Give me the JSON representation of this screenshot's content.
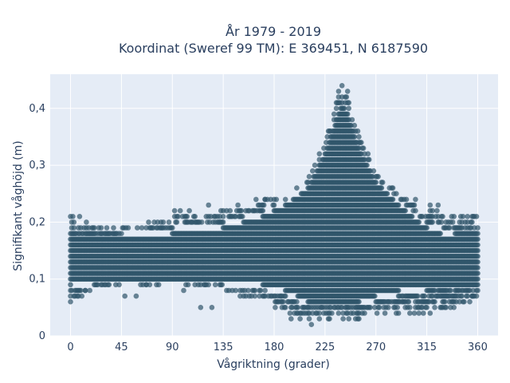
{
  "chart_data": {
    "type": "scatter",
    "title_line1": "År 1979 - 2019",
    "title_line2": "Koordinat (Sweref 99 TM): E 369451, N 6187590",
    "xlabel": "Vågriktning (grader)",
    "ylabel": "Signifikant våghöjd (m)",
    "xlim": [
      -18,
      378
    ],
    "ylim": [
      0,
      0.46
    ],
    "x_ticks": [
      0,
      45,
      90,
      135,
      180,
      225,
      270,
      315,
      360
    ],
    "y_ticks": [
      0,
      0.1,
      0.2,
      0.3,
      0.4
    ],
    "x_tick_labels": [
      "0",
      "45",
      "90",
      "135",
      "180",
      "225",
      "270",
      "315",
      "360"
    ],
    "y_tick_labels": [
      "0",
      "0,1",
      "0,2",
      "0,3",
      "0,4"
    ],
    "grid": true,
    "marker_color": "#30556b",
    "plot_background": "#e5ecf6",
    "envelope": {
      "description_x": [
        0,
        20,
        45,
        90,
        135,
        170,
        190,
        210,
        225,
        235,
        240,
        245,
        255,
        270,
        290,
        315,
        340,
        360
      ],
      "upper": [
        0.21,
        0.2,
        0.19,
        0.21,
        0.22,
        0.24,
        0.24,
        0.28,
        0.34,
        0.41,
        0.44,
        0.42,
        0.36,
        0.29,
        0.25,
        0.23,
        0.21,
        0.21
      ],
      "lower": [
        0.06,
        0.08,
        0.09,
        0.09,
        0.08,
        0.06,
        0.04,
        0.03,
        0.03,
        0.03,
        0.03,
        0.03,
        0.03,
        0.04,
        0.04,
        0.04,
        0.05,
        0.06
      ],
      "core_upper": [
        0.17,
        0.17,
        0.17,
        0.18,
        0.19,
        0.21,
        0.23,
        0.26,
        0.32,
        0.38,
        0.41,
        0.39,
        0.33,
        0.27,
        0.23,
        0.19,
        0.17,
        0.17
      ],
      "core_lower": [
        0.09,
        0.1,
        0.1,
        0.1,
        0.1,
        0.09,
        0.08,
        0.06,
        0.06,
        0.06,
        0.06,
        0.06,
        0.06,
        0.07,
        0.08,
        0.09,
        0.09,
        0.09
      ]
    },
    "outliers": [
      {
        "x": 0,
        "y": 0.06
      },
      {
        "x": 3,
        "y": 0.07
      },
      {
        "x": 10,
        "y": 0.07
      },
      {
        "x": 13,
        "y": 0.08
      },
      {
        "x": 40,
        "y": 0.09
      },
      {
        "x": 43,
        "y": 0.09
      },
      {
        "x": 48,
        "y": 0.07
      },
      {
        "x": 58,
        "y": 0.07
      },
      {
        "x": 67,
        "y": 0.09
      },
      {
        "x": 100,
        "y": 0.08
      },
      {
        "x": 115,
        "y": 0.05
      },
      {
        "x": 125,
        "y": 0.05
      },
      {
        "x": 150,
        "y": 0.07
      },
      {
        "x": 160,
        "y": 0.07
      },
      {
        "x": 172,
        "y": 0.08
      },
      {
        "x": 195,
        "y": 0.03
      },
      {
        "x": 203,
        "y": 0.03
      },
      {
        "x": 213,
        "y": 0.02
      },
      {
        "x": 228,
        "y": 0.03
      },
      {
        "x": 255,
        "y": 0.03
      },
      {
        "x": 308,
        "y": 0.04
      },
      {
        "x": 318,
        "y": 0.04
      },
      {
        "x": 332,
        "y": 0.05
      },
      {
        "x": 348,
        "y": 0.06
      },
      {
        "x": 355,
        "y": 0.07
      },
      {
        "x": 2,
        "y": 0.21
      },
      {
        "x": 8,
        "y": 0.21
      },
      {
        "x": 92,
        "y": 0.22
      },
      {
        "x": 97,
        "y": 0.22
      },
      {
        "x": 105,
        "y": 0.22
      },
      {
        "x": 122,
        "y": 0.23
      },
      {
        "x": 133,
        "y": 0.22
      },
      {
        "x": 148,
        "y": 0.23
      },
      {
        "x": 157,
        "y": 0.22
      },
      {
        "x": 164,
        "y": 0.24
      },
      {
        "x": 172,
        "y": 0.24
      },
      {
        "x": 240,
        "y": 0.44
      },
      {
        "x": 245,
        "y": 0.43
      },
      {
        "x": 237,
        "y": 0.43
      },
      {
        "x": 305,
        "y": 0.24
      },
      {
        "x": 318,
        "y": 0.23
      },
      {
        "x": 325,
        "y": 0.23
      },
      {
        "x": 345,
        "y": 0.21
      },
      {
        "x": 355,
        "y": 0.21
      }
    ]
  }
}
